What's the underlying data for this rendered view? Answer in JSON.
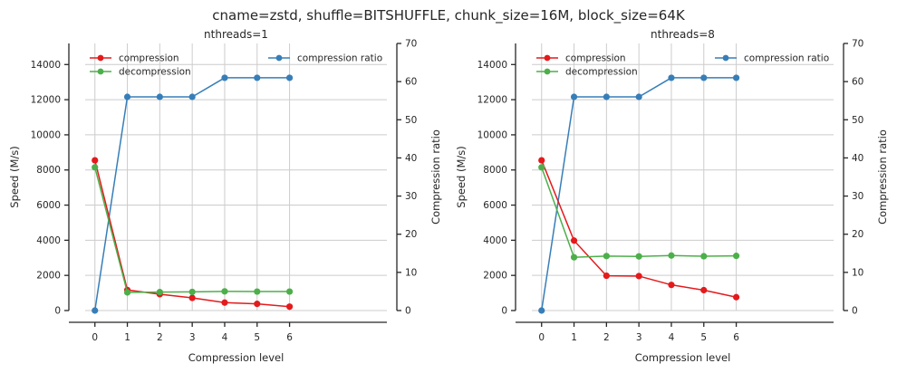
{
  "suptitle": "cname=zstd, shuffle=BITSHUFFLE, chunk_size=16M, block_size=64K",
  "colors": {
    "compression": "#e41a1c",
    "decompression": "#4daf4a",
    "compression_ratio": "#377eb8"
  },
  "chart_data": [
    {
      "type": "line",
      "title": "nthreads=1",
      "xlabel": "Compression level",
      "ylabel": "Speed (M/s)",
      "ylabel_right": "Compression ratio",
      "x": [
        0,
        1,
        2,
        3,
        4,
        5,
        6
      ],
      "xlim": [
        -0.3,
        9
      ],
      "ylim": [
        0,
        15200
      ],
      "ylim_right": [
        0,
        70
      ],
      "yticks": [
        0,
        2000,
        4000,
        6000,
        8000,
        10000,
        12000,
        14000
      ],
      "yticks_right": [
        0,
        10,
        20,
        30,
        40,
        50,
        60,
        70
      ],
      "grid": true,
      "series": [
        {
          "name": "compression",
          "axis": "left",
          "values": [
            8550,
            1170,
            930,
            720,
            450,
            380,
            220
          ]
        },
        {
          "name": "decompression",
          "axis": "left",
          "values": [
            8150,
            1030,
            1050,
            1060,
            1090,
            1080,
            1080
          ]
        },
        {
          "name": "compression ratio",
          "axis": "right",
          "values": [
            0,
            56,
            56,
            56,
            61,
            61,
            61
          ]
        }
      ]
    },
    {
      "type": "line",
      "title": "nthreads=8",
      "xlabel": "Compression level",
      "ylabel": "Speed (M/s)",
      "ylabel_right": "Compression ratio",
      "x": [
        0,
        1,
        2,
        3,
        4,
        5,
        6
      ],
      "xlim": [
        -0.3,
        9
      ],
      "ylim": [
        0,
        15200
      ],
      "ylim_right": [
        0,
        70
      ],
      "yticks": [
        0,
        2000,
        4000,
        6000,
        8000,
        10000,
        12000,
        14000
      ],
      "yticks_right": [
        0,
        10,
        20,
        30,
        40,
        50,
        60,
        70
      ],
      "grid": true,
      "series": [
        {
          "name": "compression",
          "axis": "left",
          "values": [
            8550,
            3980,
            1980,
            1960,
            1460,
            1160,
            760
          ]
        },
        {
          "name": "decompression",
          "axis": "left",
          "values": [
            8150,
            3030,
            3100,
            3080,
            3130,
            3090,
            3110
          ]
        },
        {
          "name": "compression ratio",
          "axis": "right",
          "values": [
            0,
            56,
            56,
            56,
            61,
            61,
            61
          ]
        }
      ]
    }
  ]
}
